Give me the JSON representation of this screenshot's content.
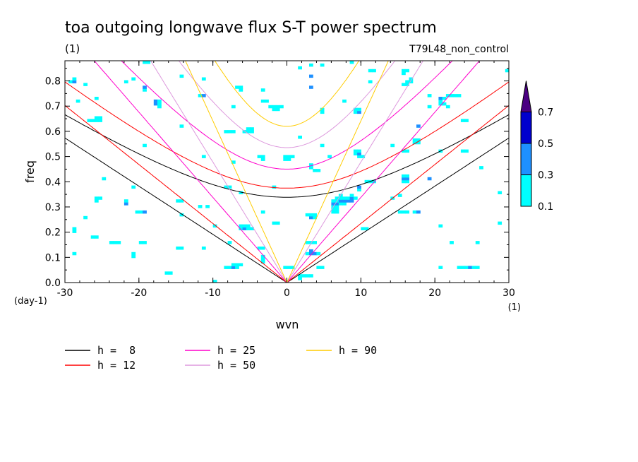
{
  "chart_data": {
    "type": "heatmap",
    "title": "toa outgoing longwave flux S-T power spectrum",
    "title_units": "(1)",
    "experiment": "T79L48_non_control",
    "xlabel": "wvn",
    "x_units": "(1)",
    "ylabel": "freq",
    "y_units": "(day-1)",
    "xlim": [
      -30,
      30
    ],
    "ylim": [
      0.0,
      0.88
    ],
    "x_ticks": [
      -30,
      -20,
      -10,
      0,
      10,
      20,
      30
    ],
    "x_tick_labels": [
      "-30",
      "-20",
      "-10",
      "0",
      "10",
      "20",
      "30"
    ],
    "y_ticks": [
      0.0,
      0.1,
      0.2,
      0.3,
      0.4,
      0.5,
      0.6,
      0.7,
      0.8
    ],
    "y_tick_labels": [
      "0.0",
      "0.1",
      "0.2",
      "0.3",
      "0.4",
      "0.5",
      "0.6",
      "0.7",
      "0.8"
    ],
    "contour_levels": [
      0.1,
      0.3,
      0.5,
      0.7
    ],
    "colorbar_labels": [
      "0.1",
      "0.3",
      "0.5",
      "0.7"
    ],
    "fill_colors": [
      "#00ffff",
      "#1e90ff",
      "#0000cd",
      "#4b0082"
    ],
    "strong_features": [
      {
        "x": 4.5,
        "y": 0.16
      },
      {
        "x": 4,
        "y": 0.12
      },
      {
        "x": 4.5,
        "y": 0.07
      },
      {
        "x": 3,
        "y": 0.035
      },
      {
        "x": -2,
        "y": 0.02
      },
      {
        "x": 16,
        "y": 0.41
      },
      {
        "x": -25,
        "y": 0.41
      },
      {
        "x": 8,
        "y": 0.34
      }
    ],
    "dispersion_curves": [
      {
        "name": "h =  8",
        "h": 8,
        "color": "#000000"
      },
      {
        "name": "h = 12",
        "h": 12,
        "color": "#ff0000"
      },
      {
        "name": "h = 25",
        "h": 25,
        "color": "#ff00cc"
      },
      {
        "name": "h = 50",
        "h": 50,
        "color": "#dd99dd"
      },
      {
        "name": "h = 90",
        "h": 90,
        "color": "#ffcc00"
      }
    ]
  }
}
